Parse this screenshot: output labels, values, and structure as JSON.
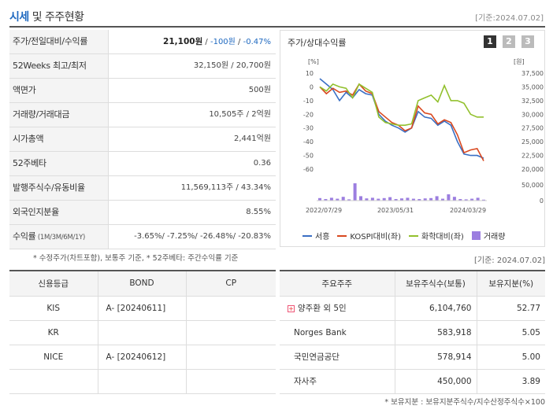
{
  "header": {
    "title_main": "시세",
    "title_rest": " 및 주주현황",
    "date": "[기준:2024.07.02]"
  },
  "info": {
    "rows": [
      {
        "label": "주가/전일대비/수익률",
        "price": "21,100원",
        "sep1": " / ",
        "change": "-100원",
        "sep2": " / ",
        "rate": "-0.47%"
      },
      {
        "label": "52Weeks 최고/최저",
        "value": "32,150원 / 20,700원"
      },
      {
        "label": "액면가",
        "value": "500원"
      },
      {
        "label": "거래량/거래대금",
        "value": "10,505주 / 2억원"
      },
      {
        "label": "시가총액",
        "value": "2,441억원"
      },
      {
        "label": "52주베타",
        "value": "0.36"
      },
      {
        "label": "발행주식수/유동비율",
        "value": "11,569,113주 / 43.34%"
      },
      {
        "label": "외국인지분율",
        "value": "8.55%"
      },
      {
        "label": "수익률",
        "label_small": " (1M/3M/6M/1Y)",
        "value": "-3.65%/ -7.25%/ -26.48%/ -20.83%"
      }
    ],
    "note": "* 수정주가(차트포함), 보통주 기준, * 52주베타: 주간수익률 기준"
  },
  "chart_panel": {
    "title": "주가/상대수익률",
    "pages": [
      "1",
      "2",
      "3"
    ],
    "date": "[기준: 2024.07.02]"
  },
  "chart_data": {
    "type": "line",
    "left_axis_unit": "[%]",
    "right_axis_unit": "[원]",
    "left_ticks": [
      "10",
      "0",
      "-10",
      "-20",
      "-30",
      "-40",
      "-50",
      "-60"
    ],
    "right_ticks": [
      "37,500",
      "35,000",
      "32,500",
      "30,000",
      "27,500",
      "25,000",
      "22,500",
      "20,000"
    ],
    "volume_ticks": [
      "50,000",
      "0"
    ],
    "x_labels": [
      "2022/07/29",
      "2023/05/31",
      "2024/03/29"
    ],
    "ylim_left": [
      -60,
      10
    ],
    "ylim_right": [
      20000,
      37500
    ],
    "series": [
      {
        "name": "서흥",
        "color": "#3a6fc4",
        "values": [
          6,
          2,
          -2,
          -10,
          -4,
          -8,
          -2,
          -5,
          -6,
          -20,
          -25,
          -28,
          -30,
          -33,
          -30,
          -18,
          -22,
          -23,
          -28,
          -25,
          -28,
          -40,
          -49,
          -50,
          -50,
          -52
        ]
      },
      {
        "name": "KOSPI대비(좌)",
        "color": "#d9481f",
        "values": [
          0,
          -5,
          -1,
          -4,
          -3,
          -6,
          2,
          -3,
          -5,
          -18,
          -22,
          -26,
          -28,
          -32,
          -30,
          -14,
          -19,
          -20,
          -27,
          -24,
          -26,
          -35,
          -48,
          -46,
          -45,
          -54
        ]
      },
      {
        "name": "화학대비(좌)",
        "color": "#92c02d",
        "values": [
          0,
          -3,
          2,
          0,
          -1,
          -8,
          2,
          -1,
          -4,
          -22,
          -26,
          -27,
          -28,
          -28,
          -27,
          -10,
          -8,
          -6,
          -11,
          1,
          -10,
          -10,
          -12,
          -20,
          -22,
          -22
        ]
      },
      {
        "name": "거래량",
        "color": "#9c7ee0",
        "values": [
          8000,
          5000,
          9000,
          6000,
          12000,
          4000,
          55000,
          14000,
          7000,
          9000,
          6000,
          8000,
          11000,
          5000,
          7000,
          9000,
          6000,
          5000,
          7000,
          8000,
          14000,
          6000,
          20000,
          12000,
          5000,
          4000,
          6000,
          9000,
          3000
        ]
      }
    ],
    "legend": [
      "서흥",
      "KOSPI대비(좌)",
      "화학대비(좌)",
      "거래량"
    ]
  },
  "credit": {
    "headers": [
      "신용등급",
      "BOND",
      "CP"
    ],
    "rows": [
      [
        "KIS",
        "A-   [20240611]",
        ""
      ],
      [
        "KR",
        "",
        ""
      ],
      [
        "NICE",
        "A-   [20240612]",
        ""
      ],
      [
        "",
        "",
        ""
      ]
    ]
  },
  "holders": {
    "headers": [
      "주요주주",
      "보유주식수(보통)",
      "보유지분(%)"
    ],
    "rows": [
      [
        "양주환 외 5인",
        "6,104,760",
        "52.77"
      ],
      [
        "Norges Bank",
        "583,918",
        "5.05"
      ],
      [
        "국민연금공단",
        "578,914",
        "5.00"
      ],
      [
        "자사주",
        "450,000",
        "3.89"
      ]
    ],
    "expand_icon": "+",
    "note": "* 보유지분 : 보유지분주식수/지수산정주식수×100"
  }
}
